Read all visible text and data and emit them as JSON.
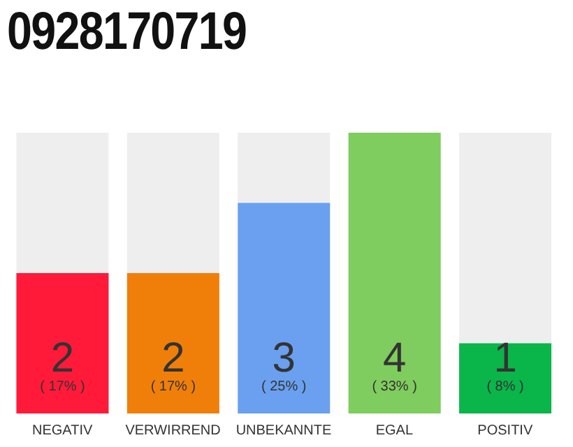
{
  "chart_data": {
    "type": "bar",
    "title": "0928170719",
    "categories": [
      "NEGATIV",
      "VERWIRREND",
      "UNBEKANNTE",
      "EGAL",
      "POSITIV"
    ],
    "values": [
      2,
      2,
      3,
      4,
      1
    ],
    "colors": [
      "#ff1a3a",
      "#f07f0a",
      "#6aa0ef",
      "#7fcc5f",
      "#0ab54a"
    ],
    "data_labels": true,
    "annotations": [
      "( 17% )",
      "( 17% )",
      "( 25% )",
      "( 33% )",
      "( 8% )"
    ],
    "grid": false,
    "legend": false
  }
}
